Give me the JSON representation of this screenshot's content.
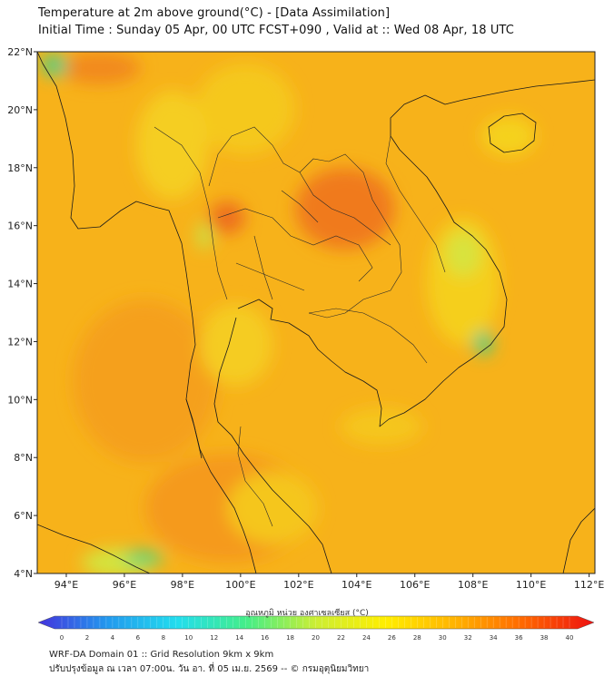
{
  "header": {
    "title": "Temperature at 2m above ground(°C) - [Data Assimilation]",
    "subtitle": "Initial Time : Sunday 05 Apr, 00 UTC FCST+090 , Valid at :: Wed 08 Apr, 18 UTC"
  },
  "map": {
    "lat_labels": [
      "22°N",
      "20°N",
      "18°N",
      "16°N",
      "14°N",
      "12°N",
      "10°N",
      "8°N",
      "6°N",
      "4°N"
    ],
    "lon_labels": [
      "94°E",
      "96°E",
      "98°E",
      "100°E",
      "102°E",
      "104°E",
      "106°E",
      "108°E",
      "110°E",
      "112°E"
    ],
    "lat_range": [
      4,
      22
    ],
    "lon_range": [
      93,
      112.2
    ],
    "colors": {
      "base": "#f7b21a",
      "hot": "#f07a1e",
      "warm": "#f59a1e",
      "mild": "#f5d21c",
      "cool": "#d2e640",
      "cold": "#3ecf86",
      "border": "#1a1a1a"
    }
  },
  "colorbar": {
    "title": "อุณหภูมิ หน่วย องศาเซลเซียส (°C)",
    "ticks": [
      "0",
      "2",
      "4",
      "6",
      "8",
      "10",
      "12",
      "14",
      "16",
      "18",
      "20",
      "22",
      "24",
      "26",
      "28",
      "30",
      "32",
      "34",
      "36",
      "38",
      "40"
    ],
    "stops": [
      "#4433dd",
      "#2299ee",
      "#22ddee",
      "#44ee88",
      "#ccee33",
      "#ffee00",
      "#ffb300",
      "#ff6600",
      "#ee1111"
    ]
  },
  "footer": {
    "line1": "WRF-DA Domain 01 :: Grid Resolution 9km x 9km",
    "line2": "ปรับปรุงข้อมูล ณ เวลา 07:00น. วัน อา. ที่ 05 เม.ย. 2569 -- © กรมอุตุนิยมวิทยา"
  }
}
